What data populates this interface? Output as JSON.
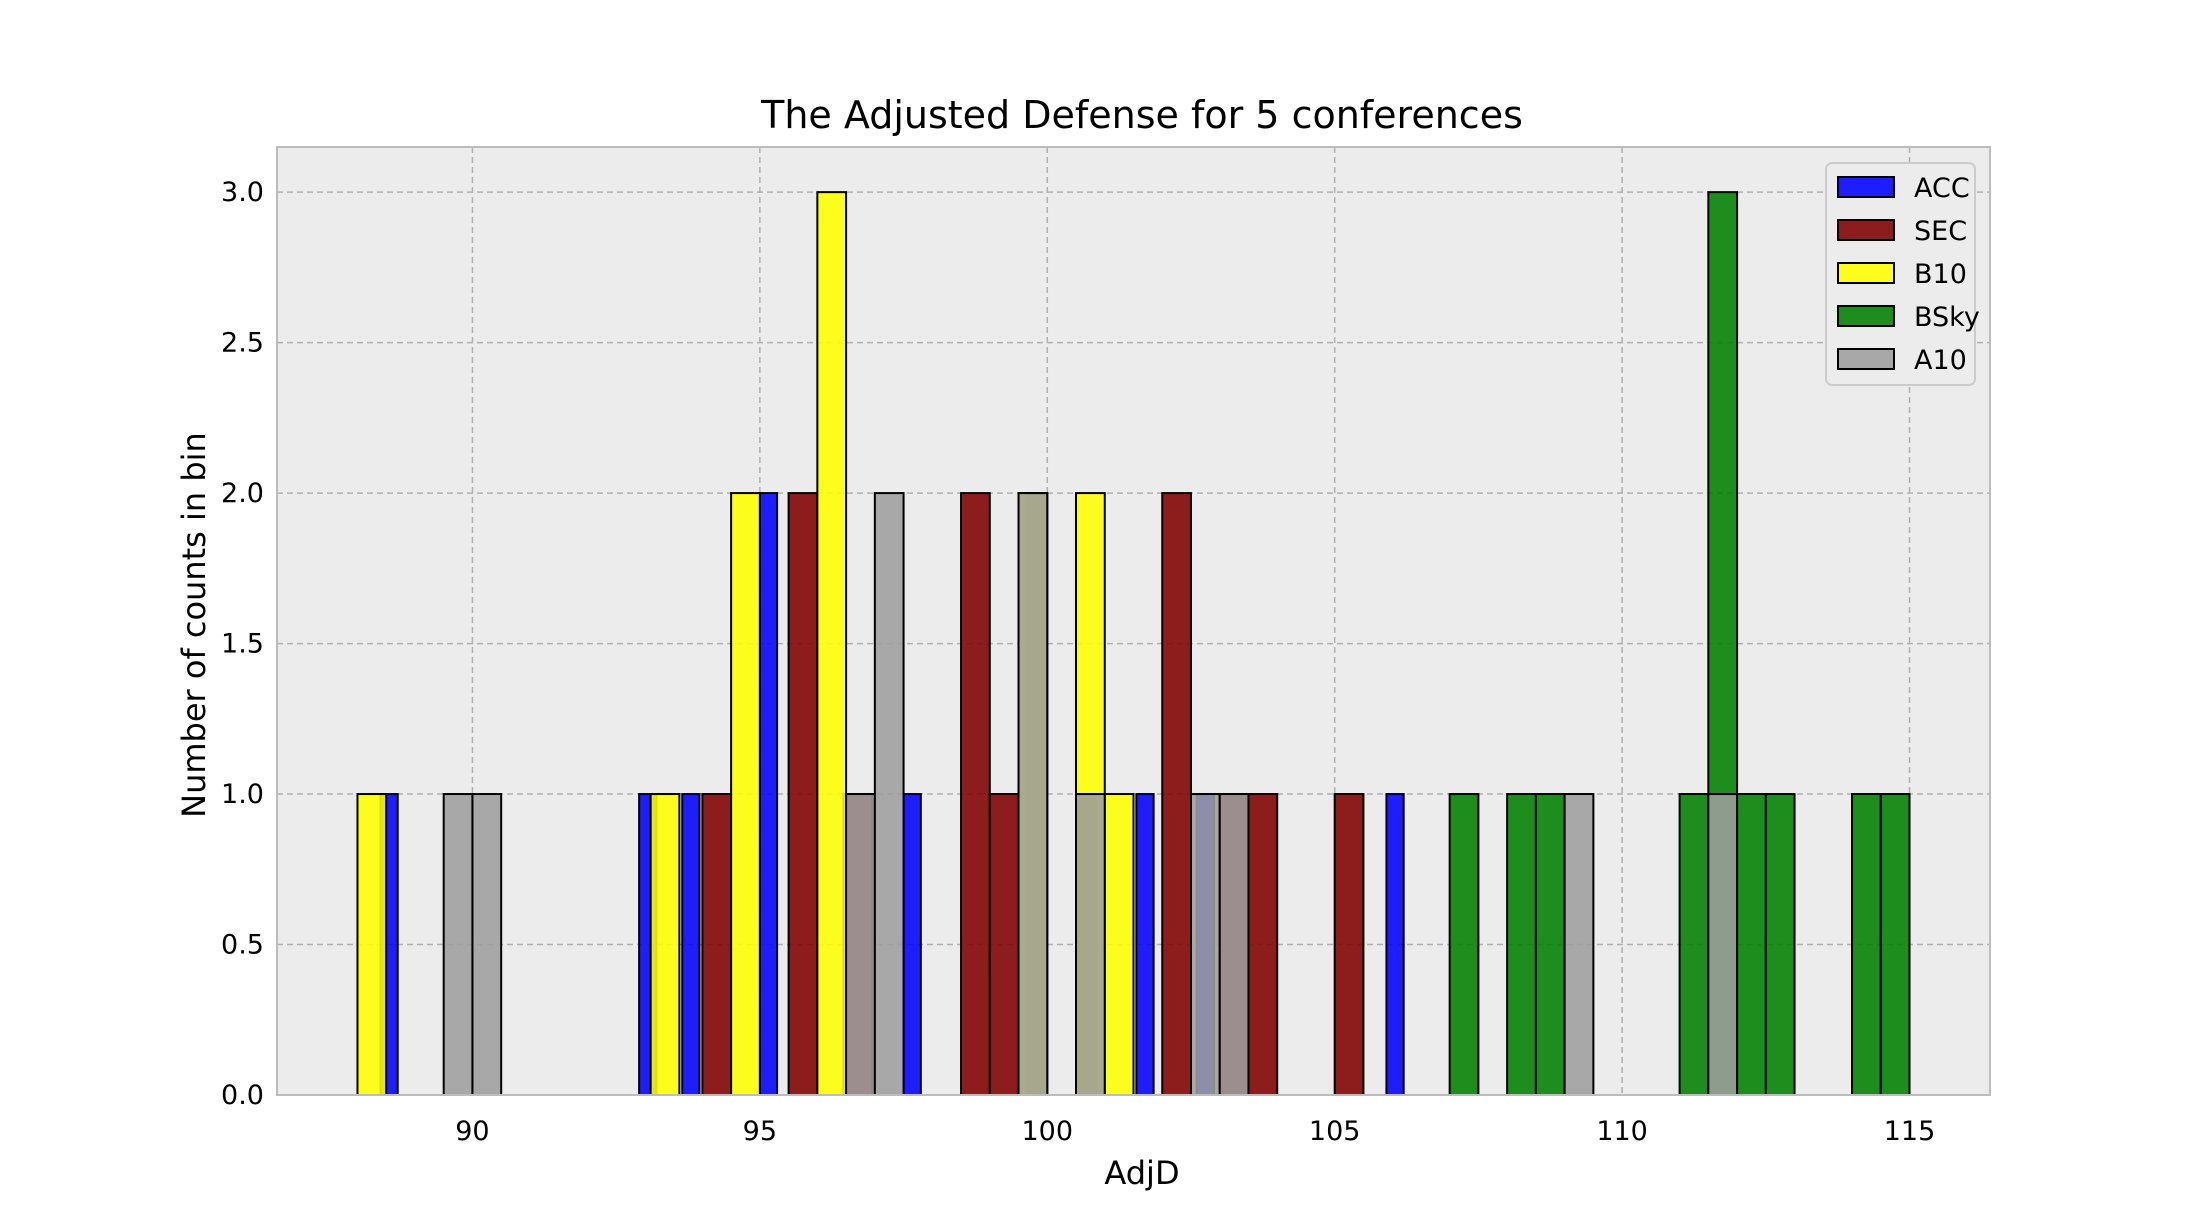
{
  "chart_data": {
    "type": "bar",
    "title": "The Adjusted Defense for 5 conferences",
    "xlabel": "AdjD",
    "ylabel": "Number of counts in bin",
    "xlim": [
      86.6,
      116.4
    ],
    "ylim": [
      0,
      3.15
    ],
    "xticks": [
      "90",
      "95",
      "100",
      "105",
      "110",
      "115"
    ],
    "xtick_values": [
      90,
      95,
      100,
      105,
      110,
      115
    ],
    "yticks": [
      "0.0",
      "0.5",
      "1.0",
      "1.5",
      "2.0",
      "2.5",
      "3.0"
    ],
    "ytick_values": [
      0,
      0.5,
      1.0,
      1.5,
      2.0,
      2.5,
      3.0
    ],
    "grid": true,
    "legend_position": "top-right",
    "background": "#ececec",
    "bar_edge_color": "#000000",
    "series": [
      {
        "name": "ACC",
        "color": "#0000ff",
        "bar_width": 0.3,
        "bars": [
          {
            "x": 88.55,
            "count": 1
          },
          {
            "x": 93.05,
            "count": 1
          },
          {
            "x": 93.8,
            "count": 1
          },
          {
            "x": 95.15,
            "count": 2
          },
          {
            "x": 97.65,
            "count": 1
          },
          {
            "x": 99.8,
            "count": 2
          },
          {
            "x": 100.7,
            "count": 1
          },
          {
            "x": 101.7,
            "count": 1
          },
          {
            "x": 102.75,
            "count": 1
          },
          {
            "x": 106.05,
            "count": 1
          }
        ]
      },
      {
        "name": "SEC",
        "color": "#7f0000",
        "bar_width": 0.5,
        "bars": [
          {
            "x": 94.25,
            "count": 1
          },
          {
            "x": 95.75,
            "count": 2
          },
          {
            "x": 96.7,
            "count": 1
          },
          {
            "x": 98.75,
            "count": 2
          },
          {
            "x": 99.25,
            "count": 1
          },
          {
            "x": 102.25,
            "count": 2
          },
          {
            "x": 103.25,
            "count": 1
          },
          {
            "x": 103.75,
            "count": 1
          },
          {
            "x": 105.25,
            "count": 1
          }
        ]
      },
      {
        "name": "B10",
        "color": "#ffff00",
        "bar_width": 0.5,
        "bars": [
          {
            "x": 88.25,
            "count": 1
          },
          {
            "x": 93.35,
            "count": 1
          },
          {
            "x": 94.75,
            "count": 2
          },
          {
            "x": 96.25,
            "count": 3
          },
          {
            "x": 99.75,
            "count": 2
          },
          {
            "x": 100.75,
            "count": 2
          },
          {
            "x": 101.25,
            "count": 1
          }
        ]
      },
      {
        "name": "BSky",
        "color": "#007f00",
        "bar_width": 0.5,
        "bars": [
          {
            "x": 107.25,
            "count": 1
          },
          {
            "x": 108.25,
            "count": 1
          },
          {
            "x": 108.75,
            "count": 1
          },
          {
            "x": 111.25,
            "count": 1
          },
          {
            "x": 111.75,
            "count": 3
          },
          {
            "x": 112.25,
            "count": 1
          },
          {
            "x": 112.75,
            "count": 1
          },
          {
            "x": 114.25,
            "count": 1
          },
          {
            "x": 114.75,
            "count": 1
          }
        ]
      },
      {
        "name": "A10",
        "color": "#9e9e9e",
        "bar_width": 0.5,
        "bars": [
          {
            "x": 89.75,
            "count": 1
          },
          {
            "x": 90.25,
            "count": 1
          },
          {
            "x": 96.75,
            "count": 1
          },
          {
            "x": 97.25,
            "count": 2
          },
          {
            "x": 99.75,
            "count": 2
          },
          {
            "x": 100.75,
            "count": 1
          },
          {
            "x": 102.75,
            "count": 1
          },
          {
            "x": 103.25,
            "count": 1
          },
          {
            "x": 109.25,
            "count": 1
          },
          {
            "x": 111.75,
            "count": 1
          }
        ]
      }
    ]
  }
}
